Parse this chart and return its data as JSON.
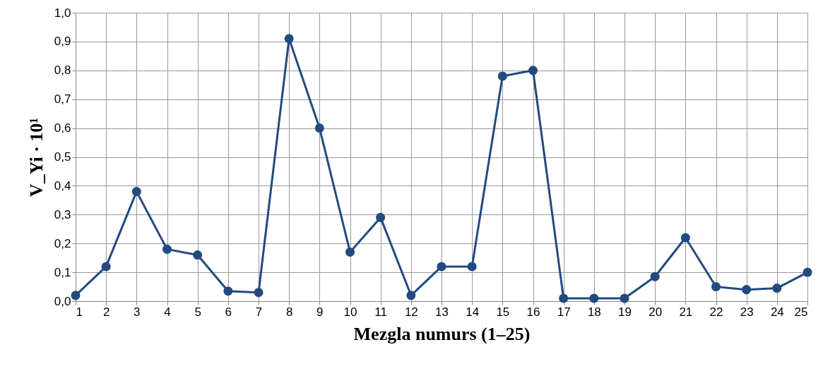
{
  "chart_data": {
    "type": "line",
    "xlabel": "Mezgla numurs (1–25)",
    "ylabel": "V_Yi · 10¹",
    "x": [
      1,
      2,
      3,
      4,
      5,
      6,
      7,
      8,
      9,
      10,
      11,
      12,
      13,
      14,
      15,
      16,
      17,
      18,
      19,
      20,
      21,
      22,
      23,
      24,
      25
    ],
    "series": [
      {
        "color": "#234a7e",
        "values": [
          0.02,
          0.12,
          0.38,
          0.18,
          0.16,
          0.035,
          0.03,
          0.91,
          0.6,
          0.17,
          0.29,
          0.02,
          0.12,
          0.12,
          0.78,
          0.8,
          0.01,
          0.01,
          0.01,
          0.085,
          0.22,
          0.05,
          0.04,
          0.045,
          0.1
        ]
      }
    ],
    "xlim": [
      1,
      25
    ],
    "xticks": [
      1,
      2,
      3,
      4,
      5,
      6,
      7,
      8,
      9,
      10,
      11,
      12,
      13,
      14,
      15,
      16,
      17,
      18,
      19,
      20,
      21,
      22,
      23,
      24,
      25
    ],
    "ylim": [
      0,
      1.0
    ],
    "yticks": [
      {
        "value": 0,
        "label": "0,0"
      },
      {
        "value": 0.1,
        "label": "0,1"
      },
      {
        "value": 0.2,
        "label": "0,2"
      },
      {
        "value": 0.3,
        "label": "0,3"
      },
      {
        "value": 0.4,
        "label": "0,4"
      },
      {
        "value": 0.5,
        "label": "0,5"
      },
      {
        "value": 0.6,
        "label": "0,6"
      },
      {
        "value": 0.7,
        "label": "0,7"
      },
      {
        "value": 0.8,
        "label": "0,8"
      },
      {
        "value": 0.9,
        "label": "0,9"
      },
      {
        "value": 1.0,
        "label": "1,0"
      }
    ],
    "grid": true,
    "marker": "circle",
    "line_style": "solid"
  }
}
